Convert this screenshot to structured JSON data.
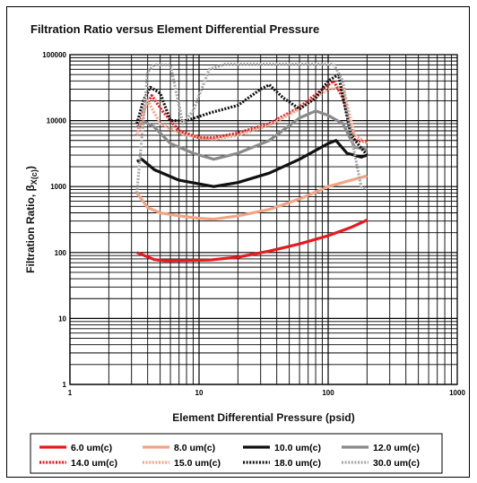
{
  "chart_data": {
    "type": "line",
    "title": "Filtration Ratio versus Element Differential Pressure",
    "xlabel": "Element Differential Pressure (psid)",
    "ylabel_main": "Filtration Ratio, β",
    "ylabel_sub": "X(c)",
    "x_scale": "log",
    "y_scale": "log",
    "xlim": [
      1,
      1000
    ],
    "ylim": [
      1,
      100000
    ],
    "x_ticks": [
      "1",
      "10",
      "100",
      "1000"
    ],
    "y_ticks": [
      "1",
      "10",
      "100",
      "1000",
      "10000",
      "100000"
    ],
    "grid": true,
    "legend_position": "bottom",
    "series": [
      {
        "name": "6.0 um(c)",
        "color": "#e8191f",
        "dash": "solid",
        "x": [
          3.3,
          4.5,
          5.5,
          8,
          12,
          20,
          35,
          60,
          100,
          150,
          200
        ],
        "y": [
          100,
          78,
          75,
          76,
          77,
          85,
          105,
          135,
          180,
          240,
          310
        ]
      },
      {
        "name": "8.0 um(c)",
        "color": "#f2a585",
        "dash": "solid",
        "x": [
          3.3,
          4,
          5,
          7,
          10,
          13,
          20,
          35,
          60,
          100,
          150,
          200
        ],
        "y": [
          800,
          480,
          400,
          360,
          330,
          320,
          360,
          450,
          650,
          1000,
          1250,
          1450
        ]
      },
      {
        "name": "10.0 um(c)",
        "color": "#111111",
        "dash": "solid",
        "x": [
          3.3,
          3.6,
          4.5,
          7,
          10,
          13,
          20,
          35,
          60,
          100,
          115,
          140,
          180,
          200
        ],
        "y": [
          2400,
          2600,
          1800,
          1250,
          1100,
          1000,
          1150,
          1600,
          2600,
          4500,
          5000,
          3200,
          2800,
          3000
        ]
      },
      {
        "name": "12.0 um(c)",
        "color": "#8a8a8a",
        "dash": "solid",
        "x": [
          3.3,
          3.8,
          4.5,
          6,
          9,
          13,
          20,
          35,
          60,
          80,
          100,
          130,
          160,
          200
        ],
        "y": [
          8000,
          9500,
          8000,
          4500,
          3200,
          2600,
          3200,
          5000,
          11000,
          14000,
          12000,
          9000,
          4000,
          3600
        ]
      },
      {
        "name": "14.0 um(c)",
        "color": "#e8191f",
        "dash": "dotted",
        "x": [
          3.3,
          3.7,
          4.3,
          5.2,
          7,
          10,
          13,
          20,
          35,
          60,
          90,
          110,
          130,
          160,
          200
        ],
        "y": [
          6000,
          14000,
          24000,
          14000,
          7000,
          5500,
          5500,
          6500,
          9000,
          16000,
          30000,
          40000,
          22000,
          5000,
          4800
        ]
      },
      {
        "name": "15.0 um(c)",
        "color": "#f2a585",
        "dash": "dotted",
        "x": [
          3.3,
          4,
          5,
          7,
          10,
          13,
          20,
          35,
          60,
          100,
          130,
          160,
          200
        ],
        "y": [
          6000,
          20000,
          9000,
          6500,
          5500,
          5200,
          6000,
          8500,
          15000,
          30000,
          32000,
          6000,
          4500
        ]
      },
      {
        "name": "18.0 um(c)",
        "color": "#111111",
        "dash": "dotted",
        "x": [
          3.3,
          3.7,
          4.2,
          5,
          6,
          8,
          12,
          20,
          30,
          35,
          45,
          60,
          80,
          100,
          120,
          150,
          200
        ],
        "y": [
          9000,
          20000,
          32000,
          26000,
          10000,
          10000,
          13000,
          17000,
          30000,
          35000,
          22000,
          15000,
          22000,
          40000,
          50000,
          6000,
          3000
        ]
      },
      {
        "name": "30.0 um(c)",
        "color": "#a8a8a8",
        "dash": "dotted",
        "x": [
          3.3,
          4,
          4.5,
          6,
          7.5,
          9,
          12,
          16,
          20,
          40,
          80,
          110,
          130,
          150,
          180,
          200
        ],
        "y": [
          800,
          55000,
          70000,
          70000,
          9000,
          14000,
          60000,
          72000,
          72000,
          72000,
          72000,
          72000,
          40000,
          6000,
          1000,
          900
        ]
      }
    ]
  }
}
